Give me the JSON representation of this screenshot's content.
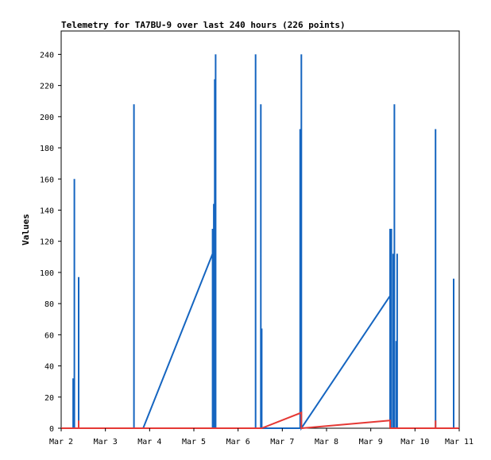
{
  "chart_data": {
    "type": "line",
    "title": "Telemetry for TA7BU-9 over last 240 hours (226 points)",
    "xlabel": "",
    "ylabel": "Values",
    "ylim": [
      0,
      255
    ],
    "yticks": [
      0,
      20,
      40,
      60,
      80,
      100,
      120,
      140,
      160,
      180,
      200,
      220,
      240
    ],
    "xlim": [
      "2022-03-02",
      "2022-03-11"
    ],
    "xtick_labels": [
      "Mar 2",
      "Mar 3",
      "Mar 4",
      "Mar 5",
      "Mar 6",
      "Mar 7",
      "Mar 8",
      "Mar 9",
      "Mar 10",
      "Mar 11"
    ],
    "grid": false,
    "legend": "none",
    "series": [
      {
        "color": "#1565c0",
        "points": [
          [
            "2022-03-02 00:00",
            0
          ],
          [
            "2022-03-02 06:30",
            0
          ],
          [
            "2022-03-02 06:30",
            32
          ],
          [
            "2022-03-02 06:30",
            0
          ],
          [
            "2022-03-02 07:10",
            0
          ],
          [
            "2022-03-02 07:10",
            160
          ],
          [
            "2022-03-02 07:10",
            0
          ],
          [
            "2022-03-02 09:30",
            0
          ],
          [
            "2022-03-02 09:30",
            97
          ],
          [
            "2022-03-02 09:30",
            0
          ],
          [
            "2022-03-03 15:30",
            0
          ],
          [
            "2022-03-03 15:30",
            208
          ],
          [
            "2022-03-03 15:30",
            0
          ],
          [
            "2022-03-03 20:30",
            0
          ],
          [
            "2022-03-05 10:10",
            112
          ],
          [
            "2022-03-05 10:10",
            0
          ],
          [
            "2022-03-05 10:10",
            128
          ],
          [
            "2022-03-05 10:10",
            0
          ],
          [
            "2022-03-05 10:50",
            0
          ],
          [
            "2022-03-05 10:50",
            144
          ],
          [
            "2022-03-05 10:50",
            0
          ],
          [
            "2022-03-05 11:20",
            0
          ],
          [
            "2022-03-05 11:20",
            224
          ],
          [
            "2022-03-05 11:20",
            0
          ],
          [
            "2022-03-05 11:50",
            0
          ],
          [
            "2022-03-05 11:50",
            240
          ],
          [
            "2022-03-05 11:50",
            0
          ],
          [
            "2022-03-06 09:30",
            0
          ],
          [
            "2022-03-06 09:30",
            240
          ],
          [
            "2022-03-06 09:30",
            0
          ],
          [
            "2022-03-06 12:20",
            0
          ],
          [
            "2022-03-06 12:20",
            208
          ],
          [
            "2022-03-06 12:20",
            0
          ],
          [
            "2022-03-06 12:50",
            0
          ],
          [
            "2022-03-06 12:50",
            64
          ],
          [
            "2022-03-06 12:50",
            0
          ],
          [
            "2022-03-07 09:40",
            0
          ],
          [
            "2022-03-07 09:40",
            192
          ],
          [
            "2022-03-07 09:40",
            0
          ],
          [
            "2022-03-07 10:20",
            0
          ],
          [
            "2022-03-07 10:20",
            240
          ],
          [
            "2022-03-07 10:20",
            0
          ],
          [
            "2022-03-09 10:30",
            85
          ],
          [
            "2022-03-09 10:30",
            128
          ],
          [
            "2022-03-09 10:30",
            0
          ],
          [
            "2022-03-09 11:10",
            0
          ],
          [
            "2022-03-09 11:10",
            128
          ],
          [
            "2022-03-09 11:10",
            0
          ],
          [
            "2022-03-09 12:10",
            0
          ],
          [
            "2022-03-09 12:10",
            112
          ],
          [
            "2022-03-09 12:10",
            0
          ],
          [
            "2022-03-09 12:50",
            0
          ],
          [
            "2022-03-09 12:50",
            208
          ],
          [
            "2022-03-09 12:50",
            0
          ],
          [
            "2022-03-09 13:50",
            0
          ],
          [
            "2022-03-09 13:50",
            56
          ],
          [
            "2022-03-09 13:50",
            0
          ],
          [
            "2022-03-09 14:20",
            0
          ],
          [
            "2022-03-09 14:20",
            112
          ],
          [
            "2022-03-09 14:20",
            0
          ],
          [
            "2022-03-10 11:10",
            0
          ],
          [
            "2022-03-10 11:10",
            192
          ],
          [
            "2022-03-10 11:10",
            0
          ],
          [
            "2022-03-10 21:00",
            0
          ],
          [
            "2022-03-10 21:00",
            96
          ],
          [
            "2022-03-10 21:00",
            0
          ]
        ]
      },
      {
        "color": "#e53935",
        "points": [
          [
            "2022-03-02 00:00",
            0
          ],
          [
            "2022-03-02 09:30",
            0
          ],
          [
            "2022-03-02 09:30",
            5
          ],
          [
            "2022-03-02 09:30",
            0
          ],
          [
            "2022-03-06 12:50",
            0
          ],
          [
            "2022-03-07 10:20",
            10
          ],
          [
            "2022-03-07 10:20",
            0
          ],
          [
            "2022-03-07 10:40",
            0
          ],
          [
            "2022-03-09 10:30",
            5
          ],
          [
            "2022-03-09 10:30",
            0
          ],
          [
            "2022-03-10 11:10",
            0
          ],
          [
            "2022-03-10 11:10",
            5
          ],
          [
            "2022-03-10 11:10",
            0
          ],
          [
            "2022-03-11 00:00",
            0
          ]
        ]
      }
    ]
  }
}
